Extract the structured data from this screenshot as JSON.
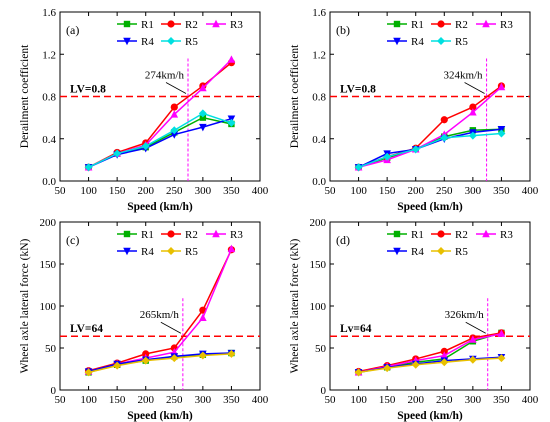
{
  "chart_data": [
    {
      "type": "line",
      "panel_label": "(a)",
      "xlabel": "Speed (km/h)",
      "ylabel": "Derailment coefficient",
      "xlim": [
        50,
        400
      ],
      "ylim": [
        0.0,
        1.6
      ],
      "xticks": [
        50,
        100,
        150,
        200,
        250,
        300,
        350,
        400
      ],
      "yticks": [
        0.0,
        0.4,
        0.8,
        1.2,
        1.6
      ],
      "x": [
        100,
        150,
        200,
        250,
        300,
        350
      ],
      "series": [
        {
          "name": "R1",
          "color": "#00b000",
          "marker": "square",
          "values": [
            0.13,
            0.26,
            0.32,
            0.46,
            0.6,
            0.54
          ]
        },
        {
          "name": "R2",
          "color": "#ff0000",
          "marker": "circle",
          "values": [
            0.13,
            0.27,
            0.36,
            0.7,
            0.9,
            1.12
          ]
        },
        {
          "name": "R3",
          "color": "#ff00ff",
          "marker": "triangle-up",
          "values": [
            0.13,
            0.26,
            0.34,
            0.63,
            0.88,
            1.15
          ]
        },
        {
          "name": "R4",
          "color": "#0000ff",
          "marker": "triangle-down",
          "values": [
            0.13,
            0.25,
            0.31,
            0.44,
            0.51,
            0.59
          ]
        },
        {
          "name": "R5",
          "color": "#00e0e0",
          "marker": "diamond",
          "values": [
            0.13,
            0.26,
            0.33,
            0.48,
            0.64,
            0.55
          ]
        }
      ],
      "limit_value": 0.8,
      "limit_label": "LV=0.8",
      "critical_speed": 274,
      "critical_label": "274km/h",
      "legend": "top"
    },
    {
      "type": "line",
      "panel_label": "(b)",
      "xlabel": "Speed (km/h)",
      "ylabel": "Derailment coefficient",
      "xlim": [
        50,
        400
      ],
      "ylim": [
        0.0,
        1.6
      ],
      "xticks": [
        50,
        100,
        150,
        200,
        250,
        300,
        350,
        400
      ],
      "yticks": [
        0.0,
        0.4,
        0.8,
        1.2,
        1.6
      ],
      "x": [
        100,
        150,
        200,
        250,
        300,
        350
      ],
      "series": [
        {
          "name": "R1",
          "color": "#00b000",
          "marker": "square",
          "values": [
            0.13,
            0.22,
            0.3,
            0.42,
            0.48,
            0.49
          ]
        },
        {
          "name": "R2",
          "color": "#ff0000",
          "marker": "circle",
          "values": [
            0.13,
            0.23,
            0.31,
            0.58,
            0.7,
            0.9
          ]
        },
        {
          "name": "R3",
          "color": "#ff00ff",
          "marker": "triangle-up",
          "values": [
            0.13,
            0.2,
            0.3,
            0.44,
            0.65,
            0.89
          ]
        },
        {
          "name": "R4",
          "color": "#0000ff",
          "marker": "triangle-down",
          "values": [
            0.13,
            0.26,
            0.3,
            0.4,
            0.46,
            0.49
          ]
        },
        {
          "name": "R5",
          "color": "#00e0e0",
          "marker": "diamond",
          "values": [
            0.13,
            0.23,
            0.3,
            0.41,
            0.43,
            0.45
          ]
        }
      ],
      "limit_value": 0.8,
      "limit_label": "LV=0.8",
      "critical_speed": 324,
      "critical_label": "324km/h",
      "legend": "top"
    },
    {
      "type": "line",
      "panel_label": "(c)",
      "xlabel": "Speed (km/h)",
      "ylabel": "Wheel axle lateral force (kN)",
      "xlim": [
        50,
        400
      ],
      "ylim": [
        0,
        200
      ],
      "xticks": [
        50,
        100,
        150,
        200,
        250,
        300,
        350,
        400
      ],
      "yticks": [
        0,
        50,
        100,
        150,
        200
      ],
      "x": [
        100,
        150,
        200,
        250,
        300,
        350
      ],
      "series": [
        {
          "name": "R1",
          "color": "#00b000",
          "marker": "square",
          "values": [
            21,
            30,
            35,
            40,
            42,
            44
          ]
        },
        {
          "name": "R2",
          "color": "#ff0000",
          "marker": "circle",
          "values": [
            23,
            32,
            43,
            50,
            95,
            167
          ]
        },
        {
          "name": "R3",
          "color": "#ff00ff",
          "marker": "triangle-up",
          "values": [
            22,
            31,
            38,
            45,
            86,
            168
          ]
        },
        {
          "name": "R4",
          "color": "#0000ff",
          "marker": "triangle-down",
          "values": [
            22,
            31,
            36,
            40,
            43,
            44
          ]
        },
        {
          "name": "R5",
          "color": "#e8c000",
          "marker": "diamond",
          "values": [
            21,
            29,
            35,
            38,
            41,
            43
          ]
        }
      ],
      "limit_value": 64,
      "limit_label": "LV=64",
      "critical_speed": 265,
      "critical_label": "265km/h",
      "legend": "top"
    },
    {
      "type": "line",
      "panel_label": "(d)",
      "xlabel": "Speed (km/h)",
      "ylabel": "Wheel axle lateral force (kN)",
      "xlim": [
        50,
        400
      ],
      "ylim": [
        0,
        200
      ],
      "xticks": [
        50,
        100,
        150,
        200,
        250,
        300,
        350,
        400
      ],
      "yticks": [
        0,
        50,
        100,
        150,
        200
      ],
      "x": [
        100,
        150,
        200,
        250,
        300,
        350
      ],
      "series": [
        {
          "name": "R1",
          "color": "#00b000",
          "marker": "square",
          "values": [
            21,
            27,
            33,
            37,
            58,
            68
          ]
        },
        {
          "name": "R2",
          "color": "#ff0000",
          "marker": "circle",
          "values": [
            22,
            29,
            37,
            46,
            62,
            68
          ]
        },
        {
          "name": "R3",
          "color": "#ff00ff",
          "marker": "triangle-up",
          "values": [
            21,
            28,
            35,
            41,
            60,
            67
          ]
        },
        {
          "name": "R4",
          "color": "#0000ff",
          "marker": "triangle-down",
          "values": [
            21,
            27,
            31,
            35,
            37,
            39
          ]
        },
        {
          "name": "R5",
          "color": "#e8c000",
          "marker": "diamond",
          "values": [
            21,
            26,
            30,
            33,
            36,
            38
          ]
        }
      ],
      "limit_value": 64,
      "limit_label": "Lv=64",
      "critical_speed": 326,
      "critical_label": "326km/h",
      "legend": "top"
    }
  ]
}
